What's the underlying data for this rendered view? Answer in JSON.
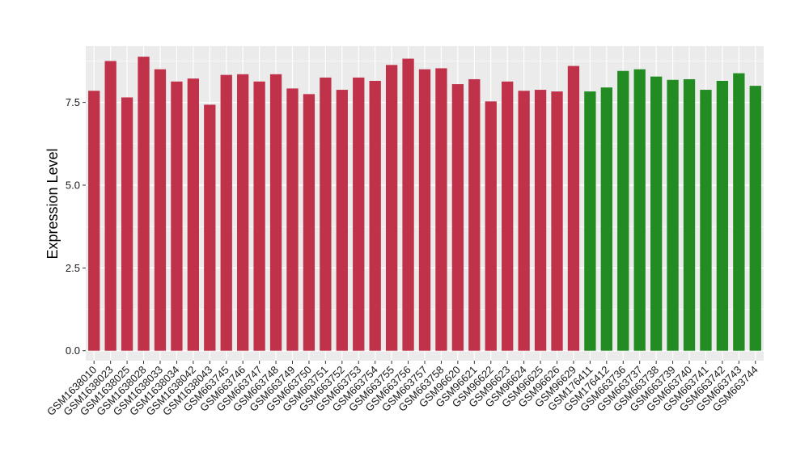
{
  "chart_data": {
    "type": "bar",
    "title": "",
    "xlabel": "",
    "ylabel": "Expression Level",
    "ylim": [
      -0.3,
      9.2
    ],
    "yticks": [
      0.0,
      2.5,
      5.0,
      7.5
    ],
    "ytick_labels": [
      "0.0",
      "2.5",
      "5.0",
      "7.5"
    ],
    "grid": true,
    "legend": "none",
    "panel_background": "#ebebeb",
    "gridline_color": "#ffffff",
    "categories": [
      "GSM1638010",
      "GSM1638023",
      "GSM1638025",
      "GSM1638028",
      "GSM1638033",
      "GSM1638034",
      "GSM1638042",
      "GSM1638043",
      "GSM663745",
      "GSM663746",
      "GSM663747",
      "GSM663748",
      "GSM663749",
      "GSM663750",
      "GSM663751",
      "GSM663752",
      "GSM663753",
      "GSM663754",
      "GSM663755",
      "GSM663756",
      "GSM663757",
      "GSM663758",
      "GSM96620",
      "GSM96621",
      "GSM96622",
      "GSM96623",
      "GSM96624",
      "GSM96625",
      "GSM96626",
      "GSM96629",
      "GSM176411",
      "GSM176412",
      "GSM663736",
      "GSM663737",
      "GSM663738",
      "GSM663739",
      "GSM663740",
      "GSM663741",
      "GSM663742",
      "GSM663743",
      "GSM663744"
    ],
    "values": [
      7.85,
      8.75,
      7.65,
      8.88,
      8.5,
      8.13,
      8.22,
      7.43,
      8.33,
      8.35,
      8.13,
      8.35,
      7.92,
      7.75,
      8.25,
      7.88,
      8.25,
      8.15,
      8.63,
      8.82,
      8.5,
      8.53,
      8.05,
      8.2,
      7.53,
      8.13,
      7.85,
      7.88,
      7.83,
      8.6,
      7.83,
      7.95,
      8.45,
      8.5,
      8.28,
      8.18,
      8.2,
      7.88,
      8.15,
      8.38,
      8.0
    ],
    "bar_colors": [
      "#c0324a",
      "#c0324a",
      "#c0324a",
      "#c0324a",
      "#c0324a",
      "#c0324a",
      "#c0324a",
      "#c0324a",
      "#c0324a",
      "#c0324a",
      "#c0324a",
      "#c0324a",
      "#c0324a",
      "#c0324a",
      "#c0324a",
      "#c0324a",
      "#c0324a",
      "#c0324a",
      "#c0324a",
      "#c0324a",
      "#c0324a",
      "#c0324a",
      "#c0324a",
      "#c0324a",
      "#c0324a",
      "#c0324a",
      "#c0324a",
      "#c0324a",
      "#c0324a",
      "#c0324a",
      "#228b22",
      "#228b22",
      "#228b22",
      "#228b22",
      "#228b22",
      "#228b22",
      "#228b22",
      "#228b22",
      "#228b22",
      "#228b22",
      "#228b22"
    ]
  }
}
